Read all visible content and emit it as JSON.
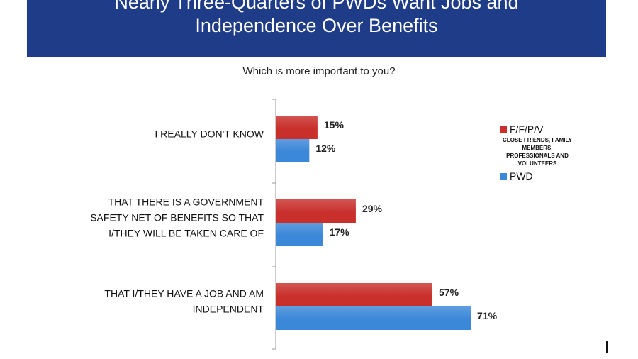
{
  "banner": {
    "title_line1": "Nearly Three-Quarters of PWDs Want Jobs and",
    "title_line2": "Independence Over Benefits"
  },
  "colors": {
    "banner": "#1f3c88",
    "ffpv": "#c9302c",
    "pwd": "#3b87d8"
  },
  "legend": {
    "ffpv_label": "F/F/P/V",
    "ffpv_description": "CLOSE FRIENDS, FAMILY MEMBERS, PROFESSIONALS AND VOLUNTEERS",
    "pwd_label": "PWD"
  },
  "chart_data": {
    "type": "bar",
    "orientation": "horizontal",
    "title": "Which is more important to you?",
    "categories": [
      [
        "I REALLY DON'T KNOW"
      ],
      [
        "THAT THERE IS A GOVERNMENT",
        "SAFETY NET OF BENEFITS SO THAT",
        "I/THEY WILL BE TAKEN CARE OF"
      ],
      [
        "THAT I/THEY HAVE A JOB AND AM",
        "INDEPENDENT"
      ]
    ],
    "series": [
      {
        "name": "F/F/P/V",
        "values": [
          15,
          29,
          57
        ],
        "labels": [
          "15%",
          "29%",
          "57%"
        ]
      },
      {
        "name": "PWD",
        "values": [
          12,
          17,
          71
        ],
        "labels": [
          "12%",
          "17%",
          "71%"
        ]
      }
    ],
    "xlim": [
      0,
      100
    ],
    "grid": false,
    "legend_position": "right"
  }
}
